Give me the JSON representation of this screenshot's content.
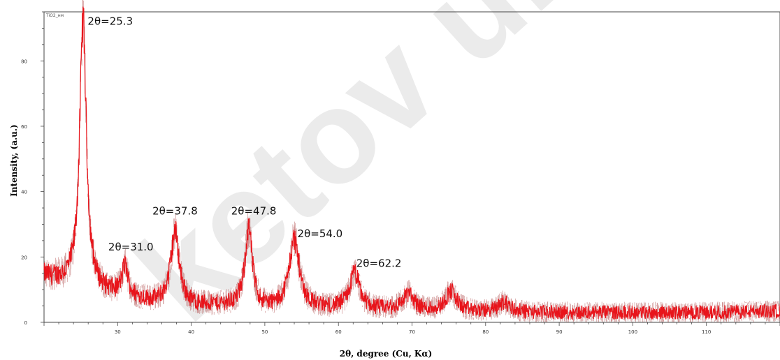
{
  "chart_data": {
    "type": "line",
    "title": "",
    "sample_label": "TiO2_нм",
    "xlabel": "2θ, degree (Cu, Kα)",
    "ylabel": "Intensity, (a.u.)",
    "xlim": [
      20,
      120
    ],
    "ylim": [
      0,
      95
    ],
    "x_ticks": [
      30,
      40,
      50,
      60,
      70,
      80,
      90,
      100,
      110
    ],
    "y_ticks": [
      0,
      20,
      40,
      60,
      80
    ],
    "grid": false,
    "line_color": "#e8141b",
    "noise_color": "#a83b3b",
    "watermark": "ketov uni",
    "background": [
      [
        20,
        14
      ],
      [
        23,
        12
      ],
      [
        26,
        10
      ],
      [
        30,
        8
      ],
      [
        35,
        6
      ],
      [
        40,
        5
      ],
      [
        45,
        5
      ],
      [
        50,
        4
      ],
      [
        55,
        4
      ],
      [
        60,
        4
      ],
      [
        70,
        3.5
      ],
      [
        80,
        3
      ],
      [
        90,
        3
      ],
      [
        100,
        3
      ],
      [
        110,
        3
      ],
      [
        120,
        3.5
      ]
    ],
    "peaks": [
      {
        "x": 25.3,
        "height": 82,
        "width": 0.55
      },
      {
        "x": 31.0,
        "height": 9,
        "width": 0.5
      },
      {
        "x": 37.8,
        "height": 22,
        "width": 0.7
      },
      {
        "x": 47.8,
        "height": 24,
        "width": 0.6
      },
      {
        "x": 54.0,
        "height": 21,
        "width": 0.85
      },
      {
        "x": 62.2,
        "height": 11,
        "width": 0.8
      },
      {
        "x": 69.5,
        "height": 5,
        "width": 0.9
      },
      {
        "x": 75.3,
        "height": 6,
        "width": 0.9
      },
      {
        "x": 82.5,
        "height": 3,
        "width": 1.0
      }
    ],
    "annotations": [
      {
        "text": "2θ=25.3",
        "x": 29.0,
        "y": 91
      },
      {
        "text": "2θ=31.0",
        "x": 31.8,
        "y": 22
      },
      {
        "text": "2θ=37.8",
        "x": 37.8,
        "y": 33
      },
      {
        "text": "2θ=47.8",
        "x": 48.5,
        "y": 33
      },
      {
        "text": "2θ=54.0",
        "x": 57.5,
        "y": 26
      },
      {
        "text": "2θ=62.2",
        "x": 65.5,
        "y": 17
      }
    ]
  }
}
